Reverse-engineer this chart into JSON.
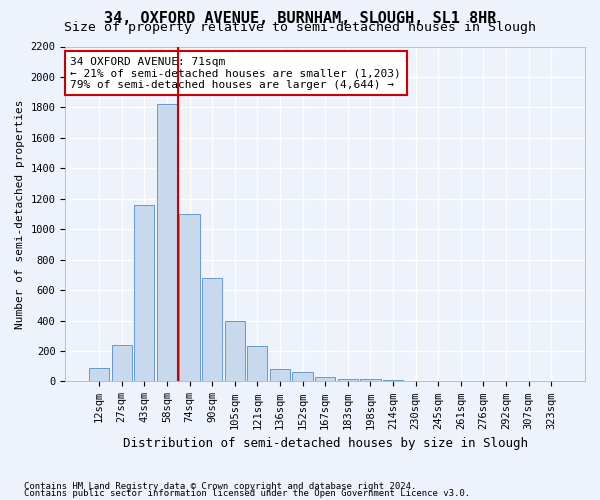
{
  "title": "34, OXFORD AVENUE, BURNHAM, SLOUGH, SL1 8HR",
  "subtitle": "Size of property relative to semi-detached houses in Slough",
  "xlabel": "Distribution of semi-detached houses by size in Slough",
  "ylabel": "Number of semi-detached properties",
  "categories": [
    "12sqm",
    "27sqm",
    "43sqm",
    "58sqm",
    "74sqm",
    "90sqm",
    "105sqm",
    "121sqm",
    "136sqm",
    "152sqm",
    "167sqm",
    "183sqm",
    "198sqm",
    "214sqm",
    "230sqm",
    "245sqm",
    "261sqm",
    "276sqm",
    "292sqm",
    "307sqm",
    "323sqm"
  ],
  "values": [
    90,
    240,
    1160,
    1820,
    1100,
    680,
    400,
    230,
    80,
    65,
    30,
    15,
    15,
    10,
    5,
    5,
    3,
    2,
    1,
    0,
    0
  ],
  "bar_color": "#c8d9ee",
  "bar_edge_color": "#6699cc",
  "vline_color": "#cc0000",
  "vline_x": 3.5,
  "annotation_text": "34 OXFORD AVENUE: 71sqm\n← 21% of semi-detached houses are smaller (1,203)\n79% of semi-detached houses are larger (4,644) →",
  "annotation_box_facecolor": "#ffffff",
  "annotation_box_edgecolor": "#cc0000",
  "ylim": [
    0,
    2200
  ],
  "yticks": [
    0,
    200,
    400,
    600,
    800,
    1000,
    1200,
    1400,
    1600,
    1800,
    2000,
    2200
  ],
  "footnote1": "Contains HM Land Registry data © Crown copyright and database right 2024.",
  "footnote2": "Contains public sector information licensed under the Open Government Licence v3.0.",
  "bg_color": "#edf2fb",
  "grid_color": "#ffffff",
  "title_fontsize": 11,
  "subtitle_fontsize": 9.5,
  "ylabel_fontsize": 8,
  "xlabel_fontsize": 9,
  "tick_fontsize": 7.5,
  "annot_fontsize": 8,
  "footnote_fontsize": 6.5
}
